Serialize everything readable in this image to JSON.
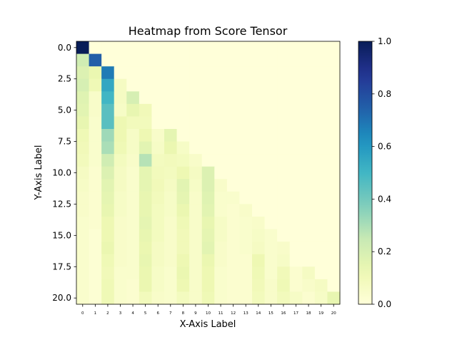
{
  "chart_data": {
    "type": "heatmap",
    "title": "Heatmap from Score Tensor",
    "xlabel": "X-Axis Label",
    "ylabel": "Y-Axis Label",
    "x_tick_labels": [
      "0",
      "1",
      "2",
      "3",
      "4",
      "5",
      "6",
      "7",
      "8",
      "9",
      "10",
      "11",
      "12",
      "13",
      "14",
      "15",
      "16",
      "17",
      "18",
      "19",
      "20"
    ],
    "y_tick_labels": [
      "0.0",
      "2.5",
      "5.0",
      "7.5",
      "10.0",
      "12.5",
      "15.0",
      "17.5",
      "20.0"
    ],
    "y_tick_values": [
      0,
      2.5,
      5,
      7.5,
      10,
      12.5,
      15,
      17.5,
      20
    ],
    "colorbar": {
      "range": [
        0,
        1
      ],
      "tick_values": [
        0,
        0.2,
        0.4,
        0.6,
        0.8,
        1.0
      ],
      "tick_labels": [
        "0.0",
        "0.2",
        "0.4",
        "0.6",
        "0.8",
        "1.0"
      ],
      "colormap": "YlGnBu"
    },
    "matrix": [
      [
        1.0,
        0,
        0,
        0,
        0,
        0,
        0,
        0,
        0,
        0,
        0,
        0,
        0,
        0,
        0,
        0,
        0,
        0,
        0,
        0,
        0
      ],
      [
        0.22,
        0.75,
        0,
        0,
        0,
        0,
        0,
        0,
        0,
        0,
        0,
        0,
        0,
        0,
        0,
        0,
        0,
        0,
        0,
        0,
        0
      ],
      [
        0.18,
        0.13,
        0.68,
        0,
        0,
        0,
        0,
        0,
        0,
        0,
        0,
        0,
        0,
        0,
        0,
        0,
        0,
        0,
        0,
        0,
        0
      ],
      [
        0.2,
        0.11,
        0.55,
        0.07,
        0,
        0,
        0,
        0,
        0,
        0,
        0,
        0,
        0,
        0,
        0,
        0,
        0,
        0,
        0,
        0,
        0
      ],
      [
        0.17,
        0.05,
        0.5,
        0.07,
        0.2,
        0,
        0,
        0,
        0,
        0,
        0,
        0,
        0,
        0,
        0,
        0,
        0,
        0,
        0,
        0,
        0
      ],
      [
        0.16,
        0.05,
        0.45,
        0.06,
        0.14,
        0.1,
        0,
        0,
        0,
        0,
        0,
        0,
        0,
        0,
        0,
        0,
        0,
        0,
        0,
        0,
        0
      ],
      [
        0.14,
        0.04,
        0.45,
        0.12,
        0.09,
        0.09,
        0,
        0,
        0,
        0,
        0,
        0,
        0,
        0,
        0,
        0,
        0,
        0,
        0,
        0,
        0
      ],
      [
        0.11,
        0.04,
        0.32,
        0.12,
        0.06,
        0.12,
        0.05,
        0.15,
        0,
        0,
        0,
        0,
        0,
        0,
        0,
        0,
        0,
        0,
        0,
        0,
        0
      ],
      [
        0.1,
        0.04,
        0.3,
        0.11,
        0.06,
        0.16,
        0.06,
        0.13,
        0.06,
        0,
        0,
        0,
        0,
        0,
        0,
        0,
        0,
        0,
        0,
        0,
        0
      ],
      [
        0.09,
        0.04,
        0.22,
        0.08,
        0.05,
        0.28,
        0.08,
        0.09,
        0.08,
        0.05,
        0,
        0,
        0,
        0,
        0,
        0,
        0,
        0,
        0,
        0,
        0
      ],
      [
        0.07,
        0.03,
        0.18,
        0.07,
        0.04,
        0.15,
        0.09,
        0.08,
        0.12,
        0.07,
        0.18,
        0,
        0,
        0,
        0,
        0,
        0,
        0,
        0,
        0,
        0
      ],
      [
        0.06,
        0.03,
        0.16,
        0.07,
        0.04,
        0.15,
        0.1,
        0.07,
        0.16,
        0.06,
        0.18,
        0.05,
        0,
        0,
        0,
        0,
        0,
        0,
        0,
        0,
        0
      ],
      [
        0.05,
        0.03,
        0.15,
        0.06,
        0.04,
        0.14,
        0.09,
        0.06,
        0.15,
        0.05,
        0.17,
        0.04,
        0.04,
        0,
        0,
        0,
        0,
        0,
        0,
        0,
        0
      ],
      [
        0.05,
        0.03,
        0.14,
        0.06,
        0.04,
        0.14,
        0.08,
        0.06,
        0.13,
        0.05,
        0.16,
        0.04,
        0.03,
        0.05,
        0,
        0,
        0,
        0,
        0,
        0,
        0
      ],
      [
        0.04,
        0.03,
        0.12,
        0.05,
        0.04,
        0.15,
        0.08,
        0.05,
        0.11,
        0.05,
        0.14,
        0.06,
        0.03,
        0.04,
        0.05,
        0,
        0,
        0,
        0,
        0,
        0
      ],
      [
        0.04,
        0.02,
        0.12,
        0.05,
        0.04,
        0.14,
        0.08,
        0.05,
        0.1,
        0.05,
        0.15,
        0.06,
        0.03,
        0.04,
        0.06,
        0.04,
        0,
        0,
        0,
        0,
        0
      ],
      [
        0.04,
        0.02,
        0.13,
        0.05,
        0.04,
        0.13,
        0.07,
        0.05,
        0.1,
        0.05,
        0.16,
        0.05,
        0.03,
        0.04,
        0.07,
        0.04,
        0.05,
        0,
        0,
        0,
        0
      ],
      [
        0.04,
        0.02,
        0.11,
        0.05,
        0.04,
        0.14,
        0.07,
        0.05,
        0.12,
        0.05,
        0.13,
        0.05,
        0.03,
        0.03,
        0.12,
        0.04,
        0.06,
        0,
        0,
        0,
        0
      ],
      [
        0.04,
        0.02,
        0.1,
        0.04,
        0.04,
        0.13,
        0.06,
        0.04,
        0.13,
        0.05,
        0.12,
        0.04,
        0.03,
        0.03,
        0.11,
        0.04,
        0.1,
        0.03,
        0.07,
        0,
        0
      ],
      [
        0.04,
        0.02,
        0.11,
        0.04,
        0.03,
        0.13,
        0.06,
        0.04,
        0.12,
        0.05,
        0.12,
        0.04,
        0.03,
        0.03,
        0.1,
        0.05,
        0.11,
        0.03,
        0.05,
        0.07,
        0
      ],
      [
        0.04,
        0.02,
        0.11,
        0.04,
        0.03,
        0.09,
        0.05,
        0.04,
        0.08,
        0.05,
        0.11,
        0.04,
        0.03,
        0.03,
        0.09,
        0.05,
        0.09,
        0.06,
        0.03,
        0.06,
        0.14
      ]
    ]
  }
}
